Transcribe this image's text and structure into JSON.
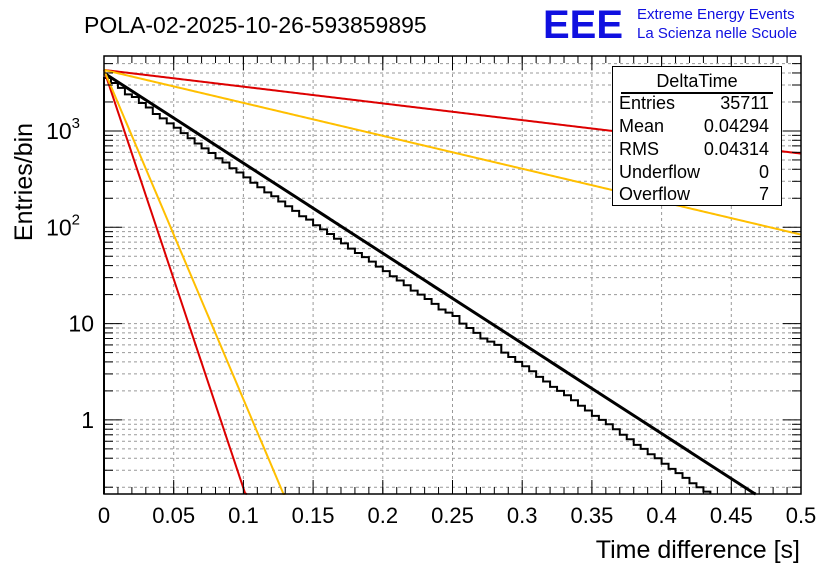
{
  "title": "POLA-02-2025-10-26-593859895",
  "logo": {
    "mark": "EEE",
    "line1": "Extreme Energy Events",
    "line2": "La Scienza nelle Scuole",
    "color": "#1010e0"
  },
  "stats": {
    "title": "DeltaTime",
    "rows": [
      {
        "label": "Entries",
        "value": "35711"
      },
      {
        "label": "Mean",
        "value": "0.04294"
      },
      {
        "label": "RMS",
        "value": "0.04314"
      },
      {
        "label": "Underflow",
        "value": "0"
      },
      {
        "label": "Overflow",
        "value": "7"
      }
    ]
  },
  "chart_data": {
    "type": "histogram",
    "title": "POLA-02-2025-10-26-593859895",
    "xlabel": "Time difference [s]",
    "ylabel": "Entries/bin",
    "xlim": [
      0,
      0.5
    ],
    "ylim": [
      0.17,
      6000
    ],
    "yscale": "log",
    "grid": true,
    "x_ticks": [
      {
        "v": 0,
        "label": "0"
      },
      {
        "v": 0.05,
        "label": "0.05"
      },
      {
        "v": 0.1,
        "label": "0.1"
      },
      {
        "v": 0.15,
        "label": "0.15"
      },
      {
        "v": 0.2,
        "label": "0.2"
      },
      {
        "v": 0.25,
        "label": "0.25"
      },
      {
        "v": 0.3,
        "label": "0.3"
      },
      {
        "v": 0.35,
        "label": "0.35"
      },
      {
        "v": 0.4,
        "label": "0.4"
      },
      {
        "v": 0.45,
        "label": "0.45"
      },
      {
        "v": 0.5,
        "label": "0.5"
      }
    ],
    "y_ticks": [
      {
        "v": 1,
        "base": "1",
        "exp": ""
      },
      {
        "v": 10,
        "base": "10",
        "exp": ""
      },
      {
        "v": 100,
        "base": "10",
        "exp": "2"
      },
      {
        "v": 1000,
        "base": "10",
        "exp": "3"
      }
    ],
    "bin_width": 0.005,
    "bins": [
      {
        "x": 0.0,
        "y": 3550
      },
      {
        "x": 0.005,
        "y": 3150
      },
      {
        "x": 0.01,
        "y": 2800
      },
      {
        "x": 0.015,
        "y": 2400
      },
      {
        "x": 0.02,
        "y": 2250
      },
      {
        "x": 0.025,
        "y": 1950
      },
      {
        "x": 0.03,
        "y": 1750
      },
      {
        "x": 0.035,
        "y": 1500
      },
      {
        "x": 0.04,
        "y": 1350
      },
      {
        "x": 0.045,
        "y": 1200
      },
      {
        "x": 0.05,
        "y": 1080
      },
      {
        "x": 0.055,
        "y": 950
      },
      {
        "x": 0.06,
        "y": 840
      },
      {
        "x": 0.065,
        "y": 740
      },
      {
        "x": 0.07,
        "y": 660
      },
      {
        "x": 0.075,
        "y": 590
      },
      {
        "x": 0.08,
        "y": 520
      },
      {
        "x": 0.085,
        "y": 470
      },
      {
        "x": 0.09,
        "y": 410
      },
      {
        "x": 0.095,
        "y": 370
      },
      {
        "x": 0.1,
        "y": 330
      },
      {
        "x": 0.105,
        "y": 290
      },
      {
        "x": 0.11,
        "y": 260
      },
      {
        "x": 0.115,
        "y": 230
      },
      {
        "x": 0.12,
        "y": 210
      },
      {
        "x": 0.125,
        "y": 185
      },
      {
        "x": 0.13,
        "y": 165
      },
      {
        "x": 0.135,
        "y": 148
      },
      {
        "x": 0.14,
        "y": 130
      },
      {
        "x": 0.145,
        "y": 120
      },
      {
        "x": 0.15,
        "y": 105
      },
      {
        "x": 0.155,
        "y": 95
      },
      {
        "x": 0.16,
        "y": 85
      },
      {
        "x": 0.165,
        "y": 76
      },
      {
        "x": 0.17,
        "y": 68
      },
      {
        "x": 0.175,
        "y": 60
      },
      {
        "x": 0.18,
        "y": 54
      },
      {
        "x": 0.185,
        "y": 49
      },
      {
        "x": 0.19,
        "y": 44
      },
      {
        "x": 0.195,
        "y": 39
      },
      {
        "x": 0.2,
        "y": 35
      },
      {
        "x": 0.205,
        "y": 31
      },
      {
        "x": 0.21,
        "y": 28
      },
      {
        "x": 0.215,
        "y": 25
      },
      {
        "x": 0.22,
        "y": 22
      },
      {
        "x": 0.225,
        "y": 20
      },
      {
        "x": 0.23,
        "y": 18
      },
      {
        "x": 0.235,
        "y": 16
      },
      {
        "x": 0.24,
        "y": 14
      },
      {
        "x": 0.245,
        "y": 13
      },
      {
        "x": 0.25,
        "y": 12
      },
      {
        "x": 0.255,
        "y": 10
      },
      {
        "x": 0.26,
        "y": 9
      },
      {
        "x": 0.265,
        "y": 8
      },
      {
        "x": 0.27,
        "y": 7
      },
      {
        "x": 0.275,
        "y": 6.5
      },
      {
        "x": 0.28,
        "y": 6
      },
      {
        "x": 0.285,
        "y": 5
      },
      {
        "x": 0.29,
        "y": 4.5
      },
      {
        "x": 0.295,
        "y": 4
      },
      {
        "x": 0.3,
        "y": 3.6
      },
      {
        "x": 0.305,
        "y": 3.2
      },
      {
        "x": 0.31,
        "y": 2.8
      },
      {
        "x": 0.315,
        "y": 2.5
      },
      {
        "x": 0.32,
        "y": 2.2
      },
      {
        "x": 0.325,
        "y": 2
      },
      {
        "x": 0.33,
        "y": 1.8
      },
      {
        "x": 0.335,
        "y": 1.6
      },
      {
        "x": 0.34,
        "y": 1.4
      },
      {
        "x": 0.345,
        "y": 1.25
      },
      {
        "x": 0.35,
        "y": 1.1
      },
      {
        "x": 0.355,
        "y": 1
      },
      {
        "x": 0.36,
        "y": 0.9
      },
      {
        "x": 0.365,
        "y": 0.8
      },
      {
        "x": 0.37,
        "y": 0.7
      },
      {
        "x": 0.375,
        "y": 0.63
      },
      {
        "x": 0.38,
        "y": 0.55
      },
      {
        "x": 0.385,
        "y": 0.5
      },
      {
        "x": 0.39,
        "y": 0.44
      },
      {
        "x": 0.395,
        "y": 0.4
      },
      {
        "x": 0.4,
        "y": 0.35
      },
      {
        "x": 0.405,
        "y": 0.31
      },
      {
        "x": 0.41,
        "y": 0.28
      },
      {
        "x": 0.415,
        "y": 0.25
      },
      {
        "x": 0.42,
        "y": 0.22
      },
      {
        "x": 0.425,
        "y": 0.2
      },
      {
        "x": 0.43,
        "y": 0.18
      }
    ],
    "curves": [
      {
        "name": "fit",
        "color": "#000000",
        "width": 3,
        "y0": 4000,
        "tau": 0.0464,
        "x_end": 0.5
      },
      {
        "name": "red-steep",
        "color": "#dd0000",
        "width": 2,
        "y0": 4300,
        "tau": 0.01,
        "x_end": 0.5
      },
      {
        "name": "orange-steep",
        "color": "#ffbf00",
        "width": 2,
        "y0": 4300,
        "tau": 0.0127,
        "x_end": 0.5
      },
      {
        "name": "red-shallow",
        "color": "#dd0000",
        "width": 2,
        "y0": 4300,
        "tau": 0.25,
        "x_end": 0.5
      },
      {
        "name": "orange-shallow",
        "color": "#ffbf00",
        "width": 2,
        "y0": 4300,
        "tau": 0.127,
        "x_end": 0.5
      }
    ]
  }
}
